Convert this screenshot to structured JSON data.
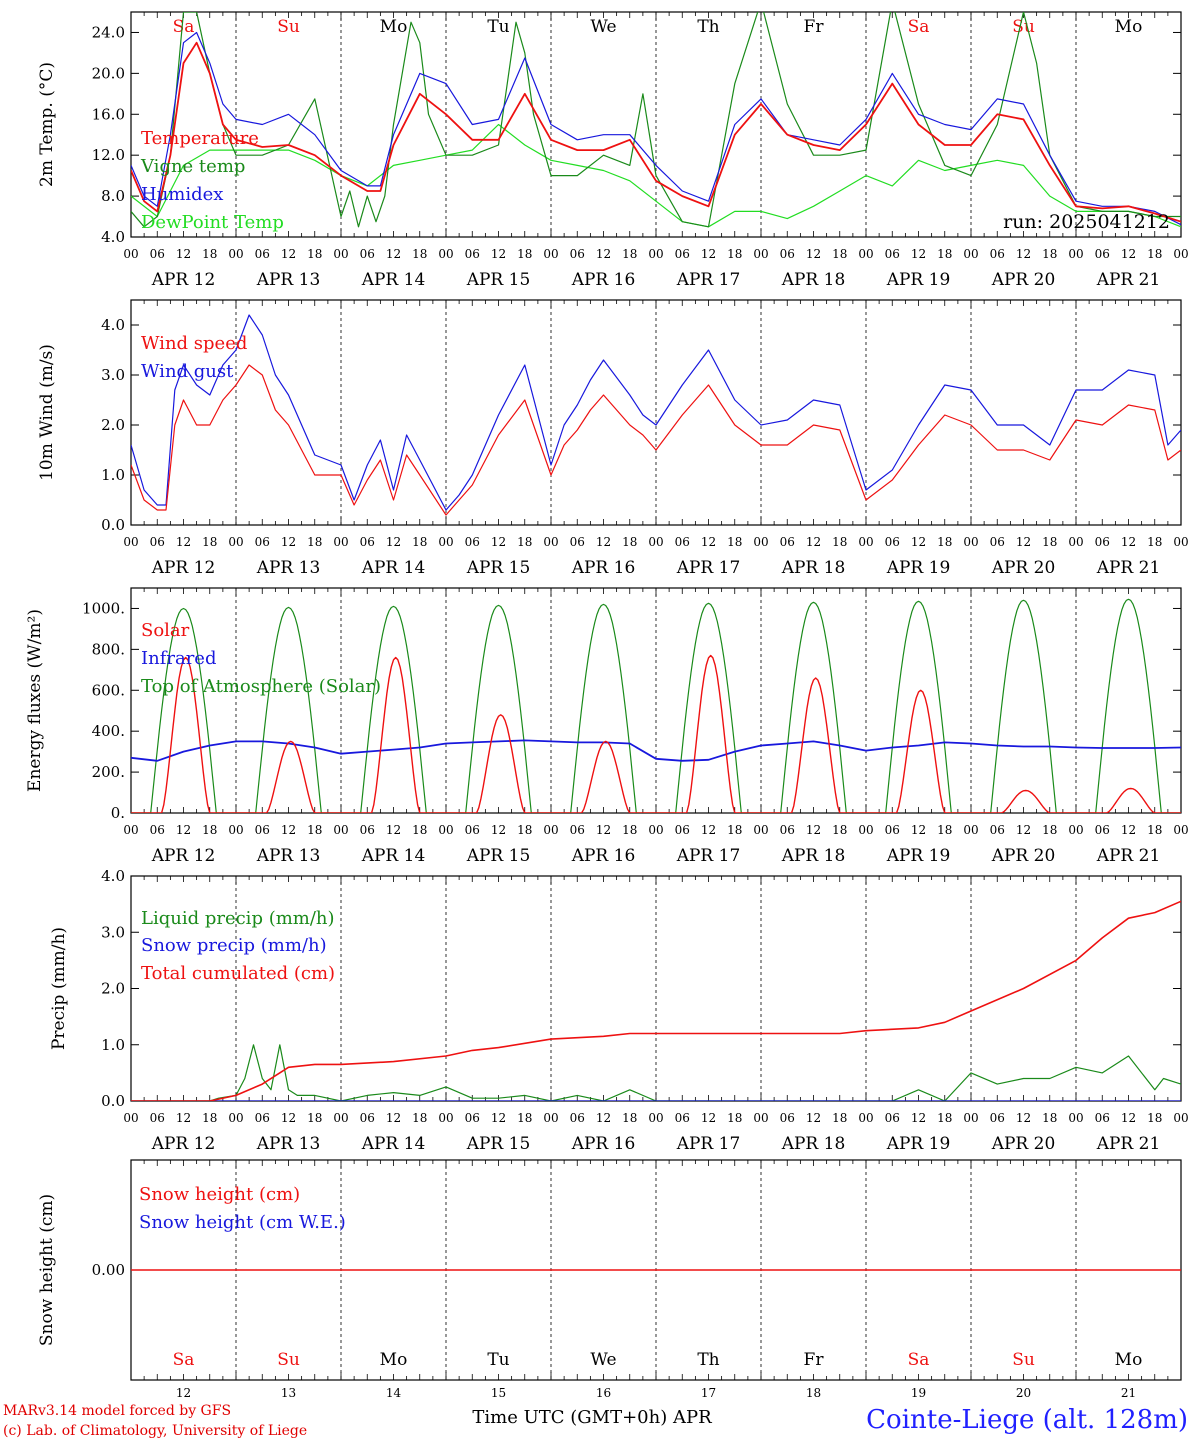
{
  "colors": {
    "red": "#ee1111",
    "green": "#1a8a1a",
    "blue": "#1818dd",
    "lightgreen": "#22dd22",
    "axis": "#000000"
  },
  "days_of_week": [
    {
      "label": "Sa",
      "color": "#ee1111"
    },
    {
      "label": "Su",
      "color": "#ee1111"
    },
    {
      "label": "Mo",
      "color": "#000000"
    },
    {
      "label": "Tu",
      "color": "#000000"
    },
    {
      "label": "We",
      "color": "#000000"
    },
    {
      "label": "Th",
      "color": "#000000"
    },
    {
      "label": "Fr",
      "color": "#000000"
    },
    {
      "label": "Sa",
      "color": "#ee1111"
    },
    {
      "label": "Su",
      "color": "#ee1111"
    },
    {
      "label": "Mo",
      "color": "#000000"
    }
  ],
  "date_labels": [
    "APR 12",
    "APR 13",
    "APR 14",
    "APR 15",
    "APR 16",
    "APR 17",
    "APR 18",
    "APR 19",
    "APR 20",
    "APR 21"
  ],
  "hour_labels": [
    "00",
    "06",
    "12",
    "18"
  ],
  "bottom_day_numbers": [
    "12",
    "13",
    "14",
    "15",
    "16",
    "17",
    "18",
    "19",
    "20",
    "21"
  ],
  "footer": {
    "model": "MARv3.14 model forced by GFS",
    "lab": "(c) Lab. of Climatology, University of Liege",
    "xaxis": "Time UTC (GMT+0h) APR",
    "station": "Cointe-Liege (alt. 128m)"
  },
  "chart_data": [
    {
      "type": "line",
      "ylabel": "2m Temp. (°C)",
      "ylim": [
        4,
        26
      ],
      "yticks": [
        "4.0",
        "8.0",
        "12.0",
        "16.0",
        "20.0",
        "24.0"
      ],
      "run_label": "run: 2025041212",
      "x_unit": "hours since APR 12 00 UTC",
      "series": [
        {
          "name": "Temperature",
          "color": "#ee1111",
          "x": [
            0,
            3,
            6,
            9,
            12,
            15,
            18,
            21,
            24,
            30,
            36,
            42,
            48,
            54,
            57,
            60,
            66,
            72,
            78,
            84,
            90,
            96,
            102,
            108,
            114,
            120,
            126,
            132,
            138,
            144,
            150,
            156,
            162,
            168,
            174,
            180,
            186,
            192,
            198,
            204,
            210,
            216,
            222,
            228,
            234,
            240
          ],
          "values": [
            10.5,
            7.5,
            6.5,
            12,
            21,
            23,
            20,
            15,
            13.5,
            12.8,
            13,
            12,
            10,
            8.5,
            8.5,
            13,
            18,
            16,
            13.5,
            13.5,
            18,
            13.5,
            12.5,
            12.5,
            13.5,
            9.5,
            8,
            7,
            14,
            17,
            14,
            13,
            12.5,
            15,
            19,
            15,
            13,
            13,
            16,
            15.5,
            11,
            7,
            6.8,
            7,
            6.3,
            5.5
          ]
        },
        {
          "name": "Vigne temp",
          "color": "#1a8a1a",
          "x": [
            0,
            3,
            6,
            9,
            12,
            15,
            18,
            21,
            24,
            30,
            36,
            42,
            48,
            50,
            52,
            54,
            56,
            58,
            60,
            64,
            66,
            68,
            72,
            78,
            84,
            88,
            90,
            92,
            96,
            102,
            108,
            114,
            117,
            120,
            126,
            132,
            138,
            144,
            150,
            156,
            162,
            168,
            174,
            180,
            186,
            192,
            198,
            204,
            207,
            210,
            216,
            222,
            228,
            234,
            240
          ],
          "values": [
            6.5,
            5,
            6,
            12,
            26,
            26,
            20,
            15,
            12,
            12,
            13,
            17.5,
            6,
            8.5,
            5,
            8,
            5.5,
            8,
            15,
            25,
            23,
            16,
            12,
            12,
            13,
            25,
            22,
            16,
            10,
            10,
            12,
            11,
            18,
            10,
            5.5,
            5,
            19,
            27,
            17,
            12,
            12,
            12.5,
            27,
            17,
            11,
            10,
            15,
            26,
            21,
            12,
            7,
            6.5,
            6.5,
            6,
            6
          ]
        },
        {
          "name": "Humidex",
          "color": "#1818dd",
          "x": [
            0,
            3,
            6,
            9,
            12,
            15,
            18,
            21,
            24,
            30,
            36,
            42,
            48,
            54,
            57,
            60,
            66,
            72,
            78,
            84,
            90,
            96,
            102,
            108,
            114,
            120,
            126,
            132,
            138,
            144,
            150,
            156,
            162,
            168,
            174,
            180,
            186,
            192,
            198,
            204,
            210,
            216,
            222,
            228,
            234,
            240
          ],
          "values": [
            11,
            8,
            7,
            14,
            23,
            24,
            21,
            17,
            15.5,
            15,
            16,
            14,
            10.5,
            9,
            9,
            14,
            20,
            19,
            15,
            15.5,
            21.5,
            15,
            13.5,
            14,
            14,
            11,
            8.5,
            7.5,
            15,
            17.5,
            14,
            13.5,
            13,
            15.5,
            20,
            16,
            15,
            14.5,
            17.5,
            17,
            12,
            7.5,
            7,
            7,
            6.5,
            5.2
          ]
        },
        {
          "name": "DewPoint Temp",
          "color": "#22dd22",
          "x": [
            0,
            6,
            12,
            18,
            24,
            30,
            36,
            42,
            48,
            54,
            60,
            66,
            72,
            78,
            84,
            90,
            96,
            102,
            108,
            114,
            120,
            126,
            132,
            138,
            144,
            150,
            156,
            162,
            168,
            174,
            180,
            186,
            192,
            198,
            204,
            210,
            216,
            222,
            228,
            234,
            240
          ],
          "values": [
            8,
            6,
            11,
            12.5,
            12.5,
            12.5,
            12.5,
            11.5,
            10,
            9,
            11,
            11.5,
            12,
            12.5,
            15,
            13,
            11.5,
            11,
            10.5,
            9.5,
            7.5,
            5.5,
            5,
            6.5,
            6.5,
            5.8,
            7,
            8.5,
            10,
            9,
            11.5,
            10.5,
            11,
            11.5,
            11,
            8,
            6.5,
            6.5,
            6.5,
            6,
            5
          ]
        }
      ]
    },
    {
      "type": "line",
      "ylabel": "10m Wind (m/s)",
      "ylim": [
        0,
        4.5
      ],
      "yticks": [
        "0.0",
        "1.0",
        "2.0",
        "3.0",
        "4.0"
      ],
      "x_unit": "hours since APR 12 00 UTC",
      "series": [
        {
          "name": "Wind speed",
          "color": "#ee1111",
          "x": [
            0,
            3,
            6,
            8,
            10,
            12,
            15,
            18,
            21,
            24,
            27,
            30,
            33,
            36,
            42,
            48,
            51,
            54,
            57,
            60,
            63,
            66,
            72,
            75,
            78,
            84,
            90,
            96,
            99,
            102,
            105,
            108,
            114,
            117,
            120,
            126,
            132,
            138,
            144,
            150,
            156,
            162,
            168,
            174,
            180,
            186,
            192,
            198,
            204,
            210,
            216,
            222,
            228,
            234,
            237,
            240
          ],
          "values": [
            1.2,
            0.5,
            0.3,
            0.3,
            2.0,
            2.5,
            2.0,
            2.0,
            2.5,
            2.8,
            3.2,
            3.0,
            2.3,
            2.0,
            1.0,
            1.0,
            0.4,
            0.9,
            1.3,
            0.5,
            1.4,
            1.0,
            0.2,
            0.5,
            0.8,
            1.8,
            2.5,
            1.0,
            1.6,
            1.9,
            2.3,
            2.6,
            2.0,
            1.8,
            1.5,
            2.2,
            2.8,
            2.0,
            1.6,
            1.6,
            2.0,
            1.9,
            0.5,
            0.9,
            1.6,
            2.2,
            2.0,
            1.5,
            1.5,
            1.3,
            2.1,
            2.0,
            2.4,
            2.3,
            1.3,
            1.5
          ]
        },
        {
          "name": "Wind gust",
          "color": "#1818dd",
          "x": [
            0,
            3,
            6,
            8,
            10,
            12,
            15,
            18,
            21,
            24,
            27,
            30,
            33,
            36,
            42,
            48,
            51,
            54,
            57,
            60,
            63,
            66,
            72,
            75,
            78,
            84,
            90,
            96,
            99,
            102,
            105,
            108,
            114,
            117,
            120,
            126,
            132,
            138,
            144,
            150,
            156,
            162,
            168,
            174,
            180,
            186,
            192,
            198,
            204,
            210,
            216,
            222,
            228,
            234,
            237,
            240
          ],
          "values": [
            1.6,
            0.7,
            0.4,
            0.4,
            2.7,
            3.2,
            2.8,
            2.6,
            3.2,
            3.5,
            4.2,
            3.8,
            3.0,
            2.6,
            1.4,
            1.2,
            0.5,
            1.2,
            1.7,
            0.7,
            1.8,
            1.3,
            0.3,
            0.6,
            1.0,
            2.2,
            3.2,
            1.2,
            2.0,
            2.4,
            2.9,
            3.3,
            2.6,
            2.2,
            2.0,
            2.8,
            3.5,
            2.5,
            2.0,
            2.1,
            2.5,
            2.4,
            0.7,
            1.1,
            2.0,
            2.8,
            2.7,
            2.0,
            2.0,
            1.6,
            2.7,
            2.7,
            3.1,
            3.0,
            1.6,
            1.9
          ]
        }
      ]
    },
    {
      "type": "line",
      "ylabel": "Energy fluxes (W/m²)",
      "ylim": [
        0,
        1100
      ],
      "yticks": [
        "0.",
        "200.",
        "400.",
        "600.",
        "800.",
        "1000."
      ],
      "x_unit": "hours since APR 12 00 UTC",
      "solar_peak_daily": [
        760,
        350,
        760,
        480,
        350,
        770,
        660,
        600,
        110,
        120
      ],
      "toa_peak_daily": [
        1000,
        1005,
        1010,
        1015,
        1020,
        1025,
        1030,
        1035,
        1040,
        1045
      ],
      "series": [
        {
          "name": "Solar",
          "color": "#ee1111"
        },
        {
          "name": "Infrared",
          "color": "#1818dd",
          "x": [
            0,
            6,
            12,
            18,
            24,
            30,
            36,
            42,
            48,
            54,
            60,
            66,
            72,
            78,
            84,
            90,
            96,
            102,
            108,
            114,
            120,
            126,
            132,
            138,
            144,
            150,
            156,
            162,
            168,
            174,
            180,
            186,
            192,
            198,
            204,
            210,
            216,
            222,
            228,
            234,
            240
          ],
          "values": [
            270,
            255,
            300,
            330,
            350,
            350,
            340,
            320,
            290,
            300,
            310,
            320,
            340,
            345,
            350,
            355,
            350,
            345,
            345,
            340,
            265,
            255,
            260,
            300,
            330,
            340,
            350,
            330,
            305,
            320,
            330,
            345,
            340,
            330,
            325,
            325,
            320,
            318,
            318,
            318,
            320
          ]
        },
        {
          "name": "Top of Atmosphere (Solar)",
          "color": "#1a8a1a"
        }
      ]
    },
    {
      "type": "line",
      "ylabel": "Precip (mm/h)",
      "ylim": [
        0,
        4
      ],
      "yticks": [
        "0.0",
        "1.0",
        "2.0",
        "3.0",
        "4.0"
      ],
      "x_unit": "hours since APR 12 00 UTC",
      "series": [
        {
          "name": "Liquid precip (mm/h)",
          "color": "#1a8a1a",
          "x": [
            0,
            18,
            20,
            24,
            26,
            28,
            30,
            32,
            34,
            36,
            38,
            42,
            48,
            54,
            60,
            66,
            72,
            78,
            84,
            90,
            96,
            102,
            108,
            114,
            120,
            126,
            132,
            138,
            144,
            150,
            156,
            168,
            174,
            180,
            186,
            192,
            198,
            204,
            210,
            216,
            222,
            228,
            234,
            236,
            240
          ],
          "values": [
            0,
            0,
            0.05,
            0.1,
            0.4,
            1.0,
            0.4,
            0.2,
            1.0,
            0.2,
            0.1,
            0.1,
            0,
            0.1,
            0.15,
            0.1,
            0.25,
            0.05,
            0.05,
            0.1,
            0,
            0.1,
            0,
            0.2,
            0,
            0,
            0,
            0,
            0,
            0,
            0,
            0,
            0,
            0.2,
            0,
            0.5,
            0.3,
            0.4,
            0.4,
            0.6,
            0.5,
            0.8,
            0.2,
            0.4,
            0.3
          ]
        },
        {
          "name": "Snow precip (mm/h)",
          "color": "#1818dd",
          "x": [
            0,
            240
          ],
          "values": [
            0,
            0
          ]
        },
        {
          "name": "Total cumulated (cm)",
          "color": "#ee1111",
          "x": [
            0,
            18,
            24,
            30,
            36,
            42,
            48,
            60,
            72,
            78,
            84,
            96,
            108,
            114,
            120,
            144,
            162,
            168,
            180,
            186,
            192,
            204,
            216,
            222,
            228,
            234,
            240
          ],
          "values": [
            0,
            0,
            0.1,
            0.3,
            0.6,
            0.65,
            0.65,
            0.7,
            0.8,
            0.9,
            0.95,
            1.1,
            1.15,
            1.2,
            1.2,
            1.2,
            1.2,
            1.25,
            1.3,
            1.4,
            1.6,
            2.0,
            2.5,
            2.9,
            3.25,
            3.35,
            3.55
          ]
        }
      ]
    },
    {
      "type": "line",
      "ylabel": "Snow height (cm)",
      "yticks": [
        "0.00"
      ],
      "x_unit": "hours since APR 12 00 UTC",
      "series": [
        {
          "name": "Snow height (cm)",
          "color": "#ee1111",
          "x": [
            0,
            240
          ],
          "values": [
            0,
            0
          ]
        },
        {
          "name": "Snow height (cm W.E.)",
          "color": "#1818dd",
          "x": [
            0,
            240
          ],
          "values": [
            0,
            0
          ]
        }
      ]
    }
  ]
}
